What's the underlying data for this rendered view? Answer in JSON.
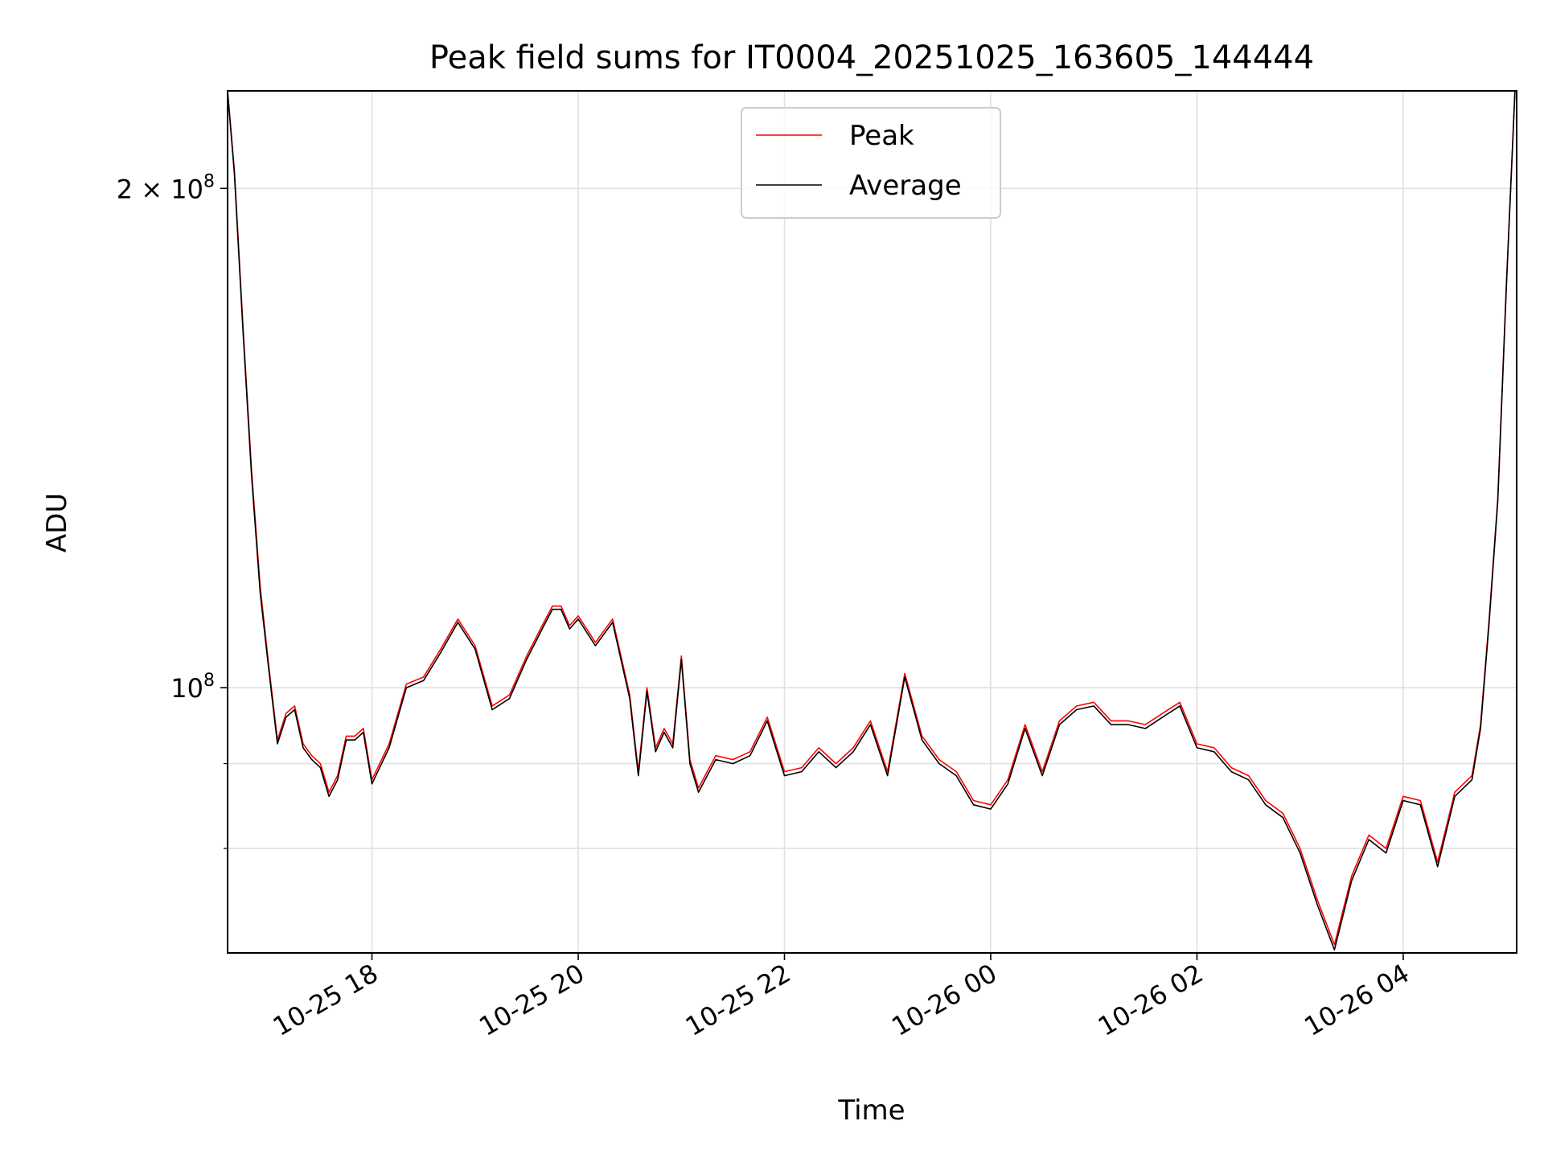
{
  "chart_data": {
    "type": "line",
    "title": "Peak field sums for IT0004_20251025_163605_144444",
    "xlabel": "Time",
    "ylabel": "ADU",
    "x_scale": "time",
    "y_scale": "log",
    "xlim": [
      "2025-10-25 16:36",
      "2025-10-26 05:06"
    ],
    "ylim": [
      69200000,
      229000000
    ],
    "x_ticks": [
      {
        "value": "2025-10-25 18:00",
        "label": "10-25 18"
      },
      {
        "value": "2025-10-25 20:00",
        "label": "10-25 20"
      },
      {
        "value": "2025-10-25 22:00",
        "label": "10-25 22"
      },
      {
        "value": "2025-10-26 00:00",
        "label": "10-26 00"
      },
      {
        "value": "2025-10-26 02:00",
        "label": "10-26 02"
      },
      {
        "value": "2025-10-26 04:00",
        "label": "10-26 04"
      }
    ],
    "y_ticks": [
      {
        "value": 100000000,
        "label": "10",
        "sup": "8"
      },
      {
        "value": 200000000,
        "label": "2 × 10",
        "sup": "8"
      }
    ],
    "y_minor_ticks": [
      80000000,
      90000000
    ],
    "grid": true,
    "legend_position": "upper-center",
    "colors": {
      "peak": "#ff0000",
      "average": "#000000",
      "grid": "#e0e0e0"
    },
    "x": [
      "2025-10-25 16:36",
      "2025-10-25 16:40",
      "2025-10-25 16:45",
      "2025-10-25 16:50",
      "2025-10-25 16:55",
      "2025-10-25 17:00",
      "2025-10-25 17:05",
      "2025-10-25 17:10",
      "2025-10-25 17:15",
      "2025-10-25 17:20",
      "2025-10-25 17:25",
      "2025-10-25 17:30",
      "2025-10-25 17:35",
      "2025-10-25 17:40",
      "2025-10-25 17:45",
      "2025-10-25 17:50",
      "2025-10-25 17:55",
      "2025-10-25 18:00",
      "2025-10-25 18:10",
      "2025-10-25 18:20",
      "2025-10-25 18:30",
      "2025-10-25 18:40",
      "2025-10-25 18:50",
      "2025-10-25 19:00",
      "2025-10-25 19:10",
      "2025-10-25 19:20",
      "2025-10-25 19:30",
      "2025-10-25 19:40",
      "2025-10-25 19:45",
      "2025-10-25 19:50",
      "2025-10-25 19:55",
      "2025-10-25 20:00",
      "2025-10-25 20:10",
      "2025-10-25 20:20",
      "2025-10-25 20:30",
      "2025-10-25 20:35",
      "2025-10-25 20:40",
      "2025-10-25 20:45",
      "2025-10-25 20:50",
      "2025-10-25 20:55",
      "2025-10-25 21:00",
      "2025-10-25 21:05",
      "2025-10-25 21:10",
      "2025-10-25 21:20",
      "2025-10-25 21:30",
      "2025-10-25 21:40",
      "2025-10-25 21:50",
      "2025-10-25 22:00",
      "2025-10-25 22:10",
      "2025-10-25 22:20",
      "2025-10-25 22:30",
      "2025-10-25 22:40",
      "2025-10-25 22:50",
      "2025-10-25 23:00",
      "2025-10-25 23:10",
      "2025-10-25 23:20",
      "2025-10-25 23:30",
      "2025-10-25 23:40",
      "2025-10-25 23:50",
      "2025-10-26 00:00",
      "2025-10-26 00:10",
      "2025-10-26 00:20",
      "2025-10-26 00:30",
      "2025-10-26 00:40",
      "2025-10-26 00:50",
      "2025-10-26 01:00",
      "2025-10-26 01:10",
      "2025-10-26 01:20",
      "2025-10-26 01:30",
      "2025-10-26 01:40",
      "2025-10-26 01:50",
      "2025-10-26 02:00",
      "2025-10-26 02:10",
      "2025-10-26 02:20",
      "2025-10-26 02:30",
      "2025-10-26 02:40",
      "2025-10-26 02:50",
      "2025-10-26 03:00",
      "2025-10-26 03:10",
      "2025-10-26 03:20",
      "2025-10-26 03:30",
      "2025-10-26 03:40",
      "2025-10-26 03:50",
      "2025-10-26 04:00",
      "2025-10-26 04:10",
      "2025-10-26 04:20",
      "2025-10-26 04:30",
      "2025-10-26 04:40",
      "2025-10-26 04:45",
      "2025-10-26 04:50",
      "2025-10-26 04:55",
      "2025-10-26 05:00",
      "2025-10-26 05:05"
    ],
    "series": [
      {
        "name": "Peak",
        "values": [
          229000000,
          205000000,
          165000000,
          135000000,
          115000000,
          103000000,
          93000000,
          96500000,
          97500000,
          92500000,
          91000000,
          90000000,
          86500000,
          88500000,
          93500000,
          93500000,
          94500000,
          88000000,
          92500000,
          100500000,
          101500000,
          105500000,
          110000000,
          106000000,
          97500000,
          99000000,
          104500000,
          109500000,
          112000000,
          112000000,
          109000000,
          110500000,
          106500000,
          110000000,
          99000000,
          89000000,
          100000000,
          92000000,
          94500000,
          92500000,
          104500000,
          90500000,
          87000000,
          91000000,
          90500000,
          91500000,
          96000000,
          89000000,
          89500000,
          92000000,
          90000000,
          92000000,
          95500000,
          89000000,
          102000000,
          93500000,
          90500000,
          89000000,
          85500000,
          85000000,
          88000000,
          95000000,
          89000000,
          95500000,
          97500000,
          98000000,
          95500000,
          95500000,
          95000000,
          96500000,
          98000000,
          92500000,
          92000000,
          89500000,
          88500000,
          85500000,
          84000000,
          80000000,
          74500000,
          70000000,
          77000000,
          81500000,
          80000000,
          86000000,
          85500000,
          78500000,
          86500000,
          88500000,
          95000000,
          110000000,
          130000000,
          175000000,
          229000000
        ]
      },
      {
        "name": "Average",
        "values": [
          229000000,
          204000000,
          164000000,
          134000000,
          114000000,
          102500000,
          92500000,
          96000000,
          97000000,
          92000000,
          90500000,
          89500000,
          86000000,
          88000000,
          93000000,
          93000000,
          94000000,
          87500000,
          92000000,
          100000000,
          101000000,
          105000000,
          109500000,
          105500000,
          97000000,
          98500000,
          104000000,
          109000000,
          111500000,
          111500000,
          108500000,
          110000000,
          106000000,
          109500000,
          98500000,
          88500000,
          99500000,
          91500000,
          94000000,
          92000000,
          104000000,
          90000000,
          86500000,
          90500000,
          90000000,
          91000000,
          95500000,
          88500000,
          89000000,
          91500000,
          89500000,
          91500000,
          95000000,
          88500000,
          101500000,
          93000000,
          90000000,
          88500000,
          85000000,
          84500000,
          87500000,
          94500000,
          88500000,
          95000000,
          97000000,
          97500000,
          95000000,
          95000000,
          94500000,
          96000000,
          97500000,
          92000000,
          91500000,
          89000000,
          88000000,
          85000000,
          83500000,
          79500000,
          74000000,
          69500000,
          76500000,
          81000000,
          79500000,
          85500000,
          85000000,
          78000000,
          86000000,
          88000000,
          94500000,
          109500000,
          129500000,
          174500000,
          229000000
        ]
      }
    ]
  }
}
